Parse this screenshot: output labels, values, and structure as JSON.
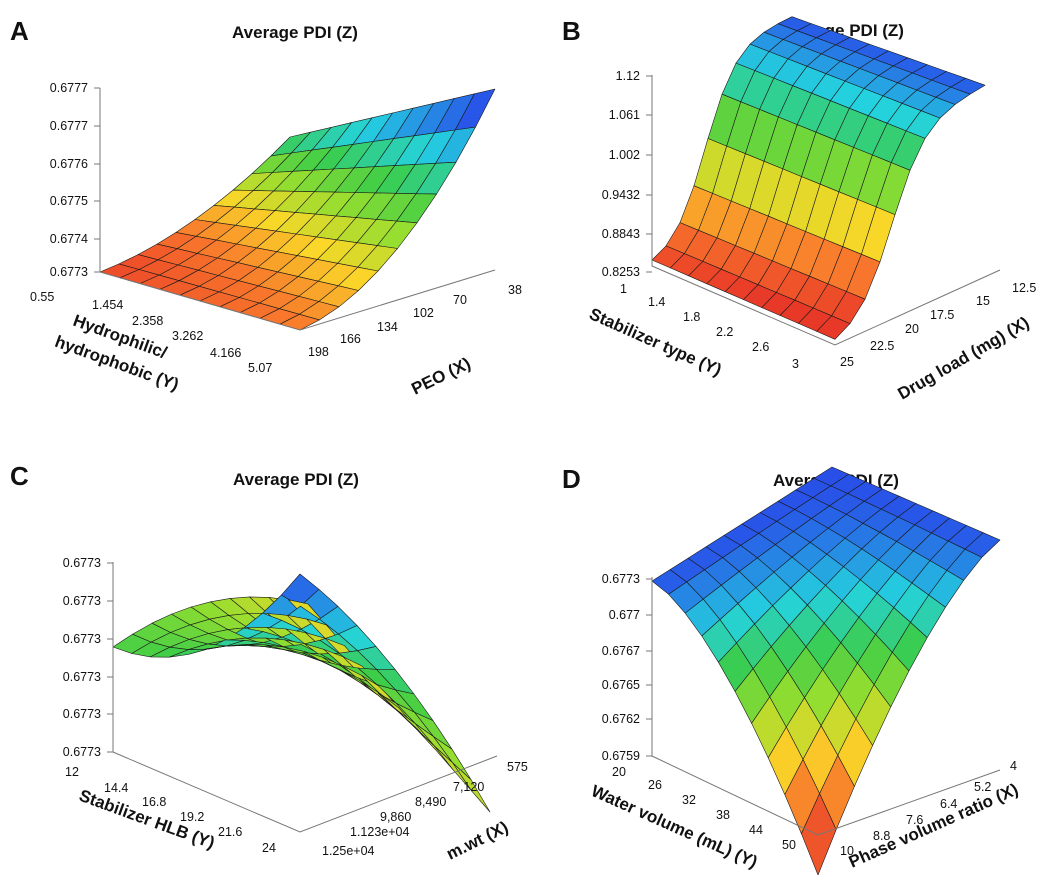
{
  "chart_data": [
    {
      "type": "surface",
      "panel": "A",
      "title": "Average PDI (Z)",
      "xlabel": "PEO (X)",
      "ylabel_lines": [
        "Hydrophilic/",
        "hydrophobic (Y)"
      ],
      "x_ticks": [
        "198",
        "166",
        "134",
        "102",
        "70",
        "38"
      ],
      "y_ticks": [
        "0.55",
        "1.454",
        "2.358",
        "3.262",
        "4.166",
        "5.07"
      ],
      "z_ticks": [
        "0.6773",
        "0.6774",
        "0.6775",
        "0.6776",
        "0.6777",
        "0.6777"
      ],
      "zlim": [
        0.6773,
        0.6777
      ]
    },
    {
      "type": "surface",
      "panel": "B",
      "title": "Average PDI (Z)",
      "xlabel": "Drug load (mg) (X)",
      "ylabel_lines": [
        "Stabilizer type (Y)"
      ],
      "x_ticks": [
        "25",
        "22.5",
        "20",
        "17.5",
        "15",
        "12.5"
      ],
      "y_ticks": [
        "1",
        "1.4",
        "1.8",
        "2.2",
        "2.6",
        "3"
      ],
      "z_ticks": [
        "0.8253",
        "0.8843",
        "0.9432",
        "1.002",
        "1.061",
        "1.12"
      ],
      "zlim": [
        0.8253,
        1.12
      ]
    },
    {
      "type": "surface",
      "panel": "C",
      "title": "Average PDI (Z)",
      "xlabel": "m.wt (X)",
      "ylabel_lines": [
        "Stabilizer HLB (Y)"
      ],
      "x_ticks": [
        "1.25e+04",
        "1.123e+04",
        "9,860",
        "8,490",
        "7,120",
        "575"
      ],
      "y_ticks": [
        "12",
        "14.4",
        "16.8",
        "19.2",
        "21.6",
        "24"
      ],
      "z_ticks": [
        "0.6773",
        "0.6773",
        "0.6773",
        "0.6773",
        "0.6773",
        "0.6773"
      ],
      "zlim": [
        0.6773,
        0.6773
      ]
    },
    {
      "type": "surface",
      "panel": "D",
      "title": "Average PDI (Z)",
      "xlabel": "Phase volume ratio (X)",
      "ylabel_lines": [
        "Water volume (mL) (Y)"
      ],
      "x_ticks": [
        "10",
        "8.8",
        "7.6",
        "6.4",
        "5.2",
        "4"
      ],
      "y_ticks": [
        "20",
        "26",
        "32",
        "38",
        "44",
        "50"
      ],
      "z_ticks": [
        "0.6759",
        "0.6762",
        "0.6765",
        "0.6767",
        "0.677",
        "0.6773"
      ],
      "zlim": [
        0.6759,
        0.6773
      ]
    }
  ]
}
